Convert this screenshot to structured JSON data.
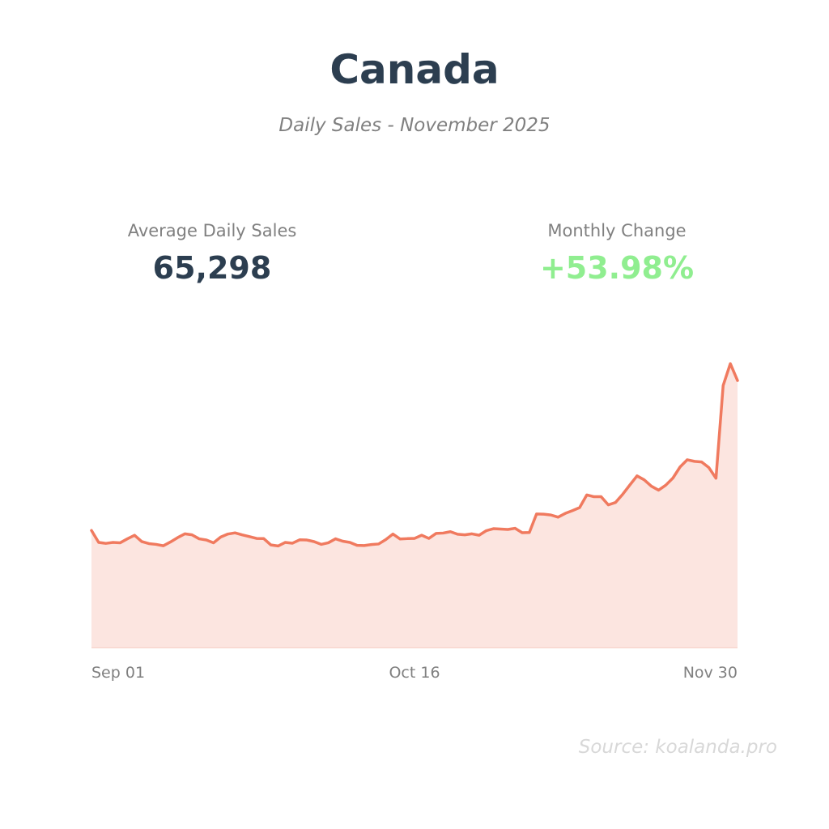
{
  "title": "Canada",
  "subtitle": "Daily Sales - November 2025",
  "stats": {
    "average_label": "Average Daily Sales",
    "average_value": "65,298",
    "change_label": "Monthly Change",
    "change_value": "+53.98%"
  },
  "source": "Source: koalanda.pro",
  "colors": {
    "line": "#f07a5f",
    "fill": "#fce5e0",
    "title": "#2c3e50",
    "positive": "#90ee90",
    "muted": "#808080"
  },
  "chart_data": {
    "type": "area",
    "x_start": "Sep 01",
    "x_end": "Nov 30",
    "xticks": [
      "Sep 01",
      "Oct 16",
      "Nov 30"
    ],
    "grid": false,
    "legend": "none",
    "values": [
      59000,
      53000,
      52500,
      53000,
      52800,
      54800,
      56600,
      53400,
      52400,
      52000,
      51300,
      53200,
      55400,
      57300,
      56800,
      54800,
      54200,
      52800,
      55700,
      57200,
      57800,
      56800,
      55900,
      55000,
      54900,
      51700,
      51200,
      53000,
      52600,
      54300,
      54200,
      53400,
      52000,
      52800,
      54800,
      53600,
      53000,
      51500,
      51400,
      51900,
      52200,
      54400,
      57200,
      54700,
      54900,
      55000,
      56600,
      55000,
      57500,
      57700,
      58400,
      57100,
      56800,
      57300,
      56600,
      58900,
      59900,
      59700,
      59500,
      60100,
      57900,
      58000,
      67300,
      67200,
      66800,
      65700,
      67600,
      69000,
      70500,
      76900,
      76000,
      76000,
      71900,
      73100,
      77200,
      81900,
      86500,
      84500,
      81300,
      79300,
      81800,
      85400,
      91000,
      94600,
      93800,
      93500,
      90700,
      85300,
      132000,
      143000,
      134500
    ],
    "ylim": [
      0,
      150000
    ]
  }
}
